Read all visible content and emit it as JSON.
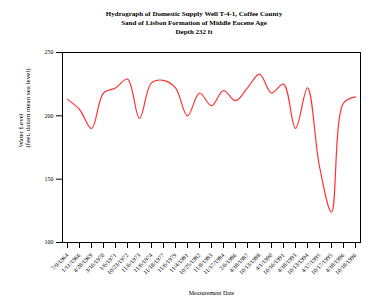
{
  "chart_data": {
    "type": "line",
    "title": "Hydrograph of Domestic Supply Well T-4-1, Coffee County",
    "subtitle": [
      "Sand of Lisbon Formation of Middle Eocene Age",
      "Depth 232 ft"
    ],
    "x_label": "Measurement Date",
    "y_label": "Water Level\n(feet, datum mean sea level)",
    "categories": [
      "7/9/1964",
      "1/11/1966",
      "4/28/1969",
      "3/16/1970",
      "1/6/1971",
      "10/23/1972",
      "11/6/1973",
      "11/6/1974",
      "11/18/1977",
      "11/6/1979",
      "11/4/1981",
      "10/25/1982",
      "11/8/1983",
      "11/17/1984",
      "2/6/1986",
      "4/18/1987",
      "10/13/1988",
      "4/1/1990",
      "10/16/1991",
      "4/18/1993",
      "10/13/1994",
      "4/17/1995",
      "10/17/1995",
      "4/18/1996",
      "10/18/1996"
    ],
    "values": [
      213,
      205,
      190,
      218,
      222,
      229,
      198,
      226,
      228,
      222,
      200,
      218,
      208,
      220,
      212,
      222,
      233,
      218,
      225,
      190,
      222,
      160,
      124,
      210,
      215
    ],
    "color": "#ff3333",
    "ylim": [
      100,
      250
    ],
    "yticks": [
      100,
      150,
      200,
      250
    ],
    "grid": false
  }
}
